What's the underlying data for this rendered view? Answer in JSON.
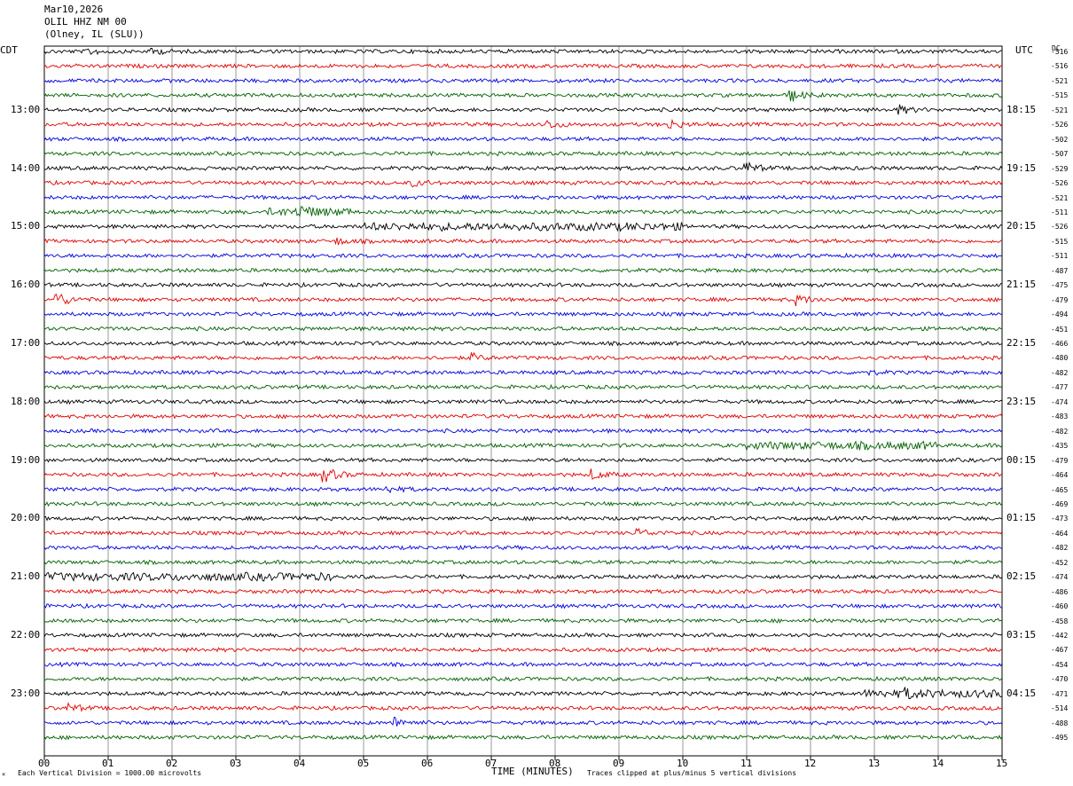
{
  "header": {
    "date": "Mar10,2026",
    "station": "OLIL HHZ NM 00",
    "location": "(Olney, IL (SLU))"
  },
  "labels": {
    "left_zone": "CDT",
    "right_zone": "UTC",
    "dc": "DC",
    "xlabel": "TIME (MINUTES)",
    "scale_note": "Each Vertical Division = 1000.00 microvolts",
    "clip_note": "Traces clipped at plus/minus 5 vertical divisions"
  },
  "chart_data": {
    "type": "helicorder",
    "title": "OLIL HHZ NM 00",
    "xlabel": "TIME (MINUTES)",
    "xlim": [
      0,
      15
    ],
    "x_ticks": [
      "00",
      "01",
      "02",
      "03",
      "04",
      "05",
      "06",
      "07",
      "08",
      "09",
      "10",
      "11",
      "12",
      "13",
      "14",
      "15"
    ],
    "left_hour_labels": [
      "13:00",
      "14:00",
      "15:00",
      "16:00",
      "17:00",
      "18:00",
      "19:00",
      "20:00",
      "21:00",
      "22:00",
      "23:00"
    ],
    "right_hour_labels": [
      "18:15",
      "19:15",
      "20:15",
      "21:15",
      "22:15",
      "23:15",
      "00:15",
      "01:15",
      "02:15",
      "03:15",
      "04:15"
    ],
    "trace_colors": [
      "#000000",
      "#e00000",
      "#0000e0",
      "#006000"
    ],
    "dc_offsets": [
      "-516",
      "-516",
      "-521",
      "-515",
      "-521",
      "-526",
      "-502",
      "-507",
      "-529",
      "-526",
      "-521",
      "-511",
      "-526",
      "-515",
      "-511",
      "-487",
      "-475",
      "-479",
      "-494",
      "-451",
      "-466",
      "-480",
      "-482",
      "-477",
      "-474",
      "-483",
      "-482",
      "-435",
      "-479",
      "-464",
      "-465",
      "-469",
      "-473",
      "-464",
      "-482",
      "-452",
      "-474",
      "-486",
      "-460",
      "-458",
      "-442",
      "-467",
      "-454",
      "-470",
      "-471",
      "-514",
      "-488",
      "-495"
    ],
    "events": [
      {
        "trace": 0,
        "minute": 0.7,
        "amp": 3
      },
      {
        "trace": 0,
        "minute": 1.7,
        "amp": 3
      },
      {
        "trace": 3,
        "minute": 11.7,
        "amp": 6
      },
      {
        "trace": 4,
        "minute": 13.4,
        "amp": 4
      },
      {
        "trace": 5,
        "minute": 7.9,
        "amp": 4
      },
      {
        "trace": 5,
        "minute": 9.8,
        "amp": 5
      },
      {
        "trace": 8,
        "minute": 11.0,
        "amp": 6
      },
      {
        "trace": 9,
        "minute": 5.8,
        "amp": 3
      },
      {
        "trace": 11,
        "minute": 4.0,
        "amp": 5
      },
      {
        "trace": 13,
        "minute": 4.6,
        "amp": 3
      },
      {
        "trace": 17,
        "minute": 0.2,
        "amp": 8
      },
      {
        "trace": 17,
        "minute": 11.8,
        "amp": 5
      },
      {
        "trace": 21,
        "minute": 6.7,
        "amp": 4
      },
      {
        "trace": 22,
        "minute": 12.8,
        "amp": 3
      },
      {
        "trace": 29,
        "minute": 4.4,
        "amp": 8
      },
      {
        "trace": 29,
        "minute": 8.6,
        "amp": 5
      },
      {
        "trace": 30,
        "minute": 5.4,
        "amp": 3
      },
      {
        "trace": 33,
        "minute": 9.3,
        "amp": 4
      },
      {
        "trace": 44,
        "minute": 13.5,
        "amp": 3
      },
      {
        "trace": 45,
        "minute": 0.4,
        "amp": 4
      },
      {
        "trace": 46,
        "minute": 5.5,
        "amp": 5
      }
    ],
    "bursts": [
      {
        "trace": 11,
        "from": 3.5,
        "to": 4.8
      },
      {
        "trace": 12,
        "from": 5.0,
        "to": 10.0
      },
      {
        "trace": 27,
        "from": 11.0,
        "to": 14.0
      },
      {
        "trace": 36,
        "from": 0.0,
        "to": 4.5
      },
      {
        "trace": 44,
        "from": 12.8,
        "to": 15.0
      }
    ]
  }
}
